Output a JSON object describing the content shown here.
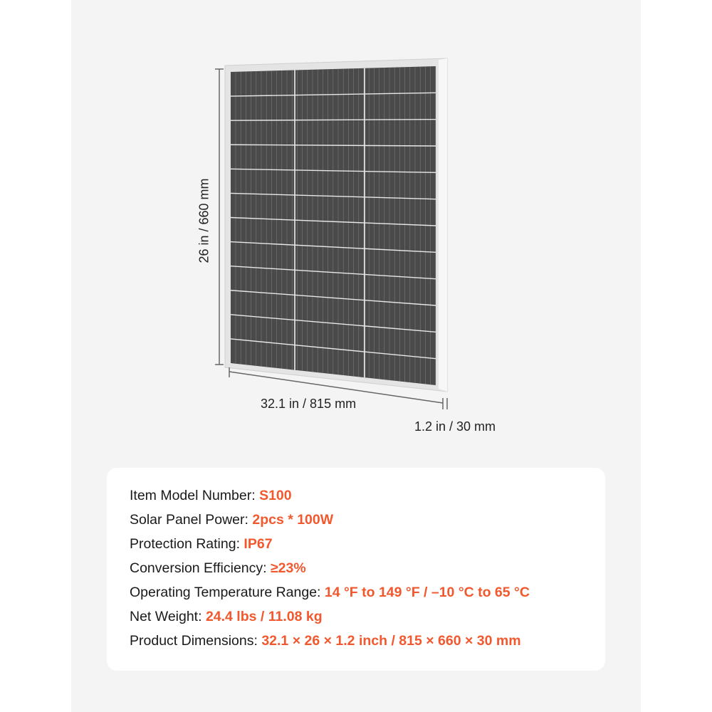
{
  "dimensions": {
    "height_label": "26 in / 660 mm",
    "width_label": "32.1 in / 815 mm",
    "depth_label": "1.2 in / 30 mm"
  },
  "specs": [
    {
      "label": "Item Model Number: ",
      "value": "S100"
    },
    {
      "label": "Solar Panel Power: ",
      "value": "2pcs * 100W"
    },
    {
      "label": "Protection Rating: ",
      "value": "IP67"
    },
    {
      "label": "Conversion Efficiency:  ",
      "value": "≥23%"
    },
    {
      "label": "Operating Temperature Range: ",
      "value": "14 °F to 149 °F  / –10 °C to 65 °C"
    },
    {
      "label": "Net Weight: ",
      "value": "24.4 lbs / 11.08 kg"
    },
    {
      "label": "Product Dimensions: ",
      "value": "32.1 × 26 × 1.2 inch / 815 × 660 × 30 mm"
    }
  ],
  "colors": {
    "accent": "#f2582e",
    "cell": "#4a4a4a",
    "frame": "#e4e4e4"
  }
}
